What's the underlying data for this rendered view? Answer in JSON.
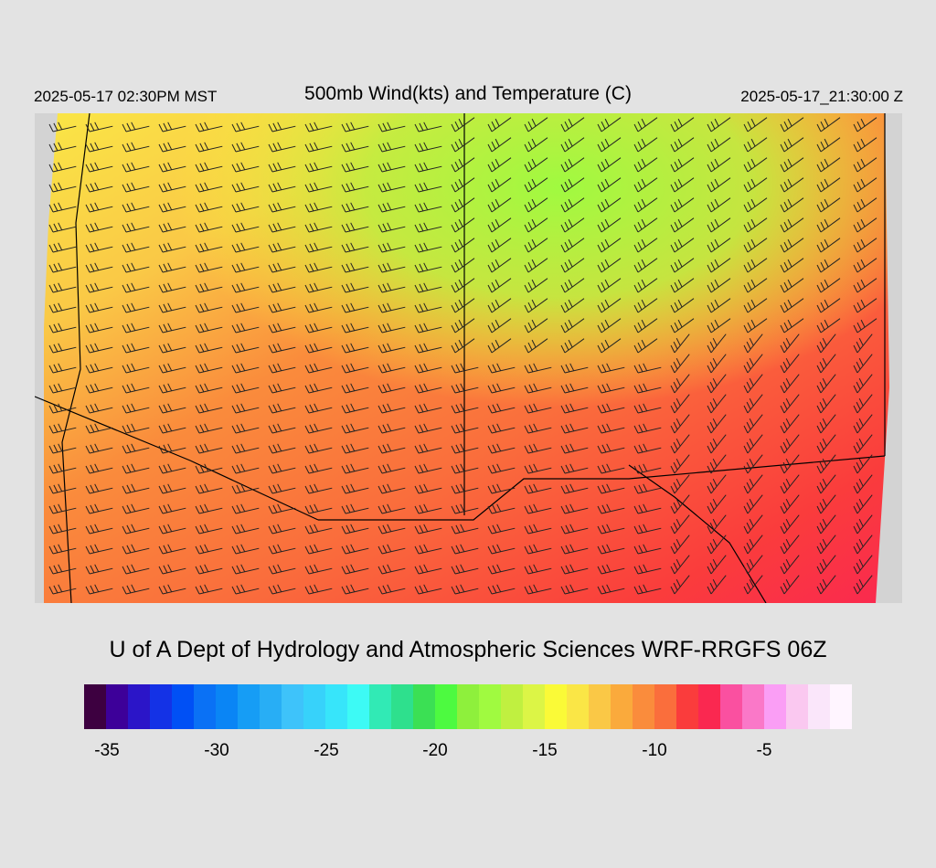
{
  "header": {
    "title": "500mb Wind(kts) and Temperature (C)",
    "local_time": "2025-05-17 02:30PM MST",
    "utc_time": "2025-05-17_21:30:00 Z"
  },
  "credit": "U of A Dept of Hydrology and Atmospheric Sciences WRF-RRGFS 06Z",
  "colorbar": {
    "colors": [
      "#3d0040",
      "#3d0099",
      "#2b15c8",
      "#1432e6",
      "#0050f5",
      "#0a71f5",
      "#0a85f5",
      "#169df5",
      "#28aef5",
      "#3ec3fa",
      "#37d2fa",
      "#37e5fa",
      "#3dfaf5",
      "#31eab5",
      "#2ee08d",
      "#3be054",
      "#4dfa40",
      "#8ef03c",
      "#a0fa40",
      "#c0f040",
      "#dcf546",
      "#fafa37",
      "#fae646",
      "#fac846",
      "#faaa3c",
      "#fa8c3c",
      "#fa6e3c",
      "#fa3c3c",
      "#fa2850",
      "#fa50a0",
      "#fa78c8",
      "#fa9ef5",
      "#fac8f0",
      "#fae6fa",
      "#fff5ff"
    ],
    "tick_labels": [
      "-35",
      "-30",
      "-25",
      "-20",
      "-15",
      "-10",
      "-5"
    ]
  },
  "map": {
    "field": "500mb temperature (C) with wind barbs (kts)",
    "background": "#d3d3d3"
  }
}
